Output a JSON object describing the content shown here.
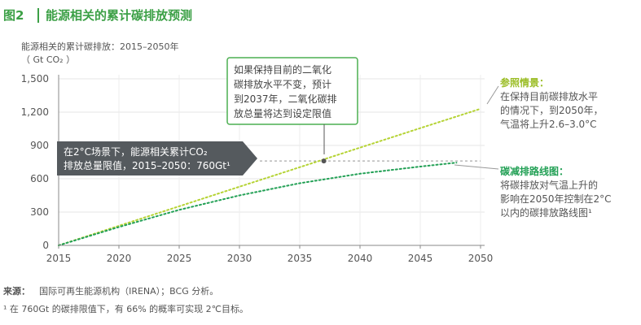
{
  "header": {
    "fig_label": "图2",
    "title": "能源相关的累计碳排放预测"
  },
  "chart_data": {
    "type": "line",
    "title": "能源相关的累计碳排放预测",
    "ylabel_line1": "能源相关的累计碳排放：2015–2050年",
    "ylabel_line2": "（ Gt CO₂ ）",
    "x_ticks": [
      "2015",
      "2020",
      "2025",
      "2030",
      "2035",
      "2040",
      "2045",
      "2050"
    ],
    "y_ticks": [
      "0",
      "300",
      "600",
      "900",
      "1,200",
      "1,500"
    ],
    "xlim": [
      2015,
      2050
    ],
    "ylim": [
      0,
      1500
    ],
    "grid": true,
    "series": [
      {
        "key": "reference",
        "color": "#b5d334",
        "style": "dotted",
        "x": [
          2015,
          2020,
          2025,
          2030,
          2035,
          2040,
          2045,
          2050
        ],
        "y": [
          0,
          176,
          352,
          528,
          704,
          880,
          1056,
          1230
        ]
      },
      {
        "key": "reduction",
        "color": "#22a055",
        "style": "dotted",
        "x": [
          2015,
          2020,
          2025,
          2030,
          2035,
          2040,
          2045,
          2048
        ],
        "y": [
          0,
          165,
          320,
          450,
          560,
          645,
          710,
          745
        ]
      }
    ],
    "limit_line": {
      "value": 760,
      "x_from": 2030,
      "x_to": 2050,
      "color": "#aaaaaa"
    },
    "crossing_point": {
      "x": 2037,
      "y": 760
    }
  },
  "annotations": {
    "callout_box_lines": [
      "如果保持目前的二氧化",
      "碳排放水平不变，预计",
      "到2037年，二氧化碳排",
      "放总量将达到设定限值"
    ],
    "limit_box_lines": [
      "在2°C场景下，能源相关累计CO₂",
      "排放总量限值，2015–2050：760Gt¹"
    ],
    "reference_title": "参照情景：",
    "reference_lines": [
      "在保持目前碳排放水平",
      "的情况下，到2050年，",
      "气温将上升2.6–3.0°C"
    ],
    "reduction_title": "碳减排路线图：",
    "reduction_lines": [
      "将碳排放对气温上升的",
      "影响在2050年控制在2°C",
      "以内的碳排放路线图¹"
    ]
  },
  "footer": {
    "source_label": "来源：",
    "source_text": "国际可再生能源机构（IRENA）；BCG 分析。",
    "footnote": "¹ 在 760Gt 的碳排限值下，有 66% 的概率可实现 2℃目标。"
  },
  "colors": {
    "green_title": "#3ca046",
    "reference_head": "#9bbd26",
    "reduction_head": "#22a055",
    "dark_box": "#555a5e",
    "callout_border": "#4caf50"
  }
}
